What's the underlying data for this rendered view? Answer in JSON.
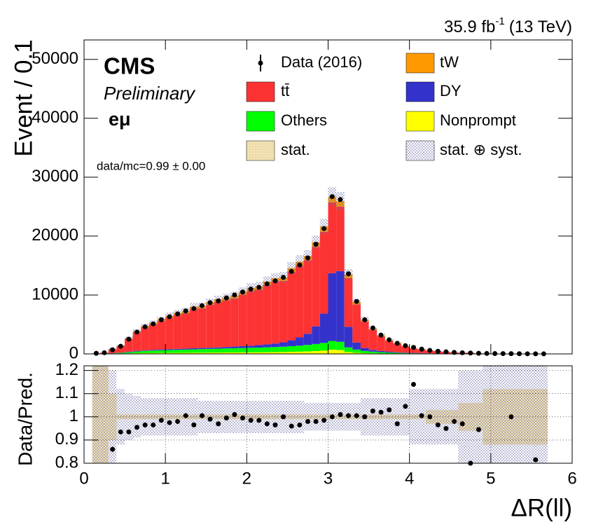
{
  "chart_data": [
    {
      "type": "stacked_histogram",
      "lumi": "35.9 fb",
      "lumi_sup": "-1",
      "lumi_energy": "(13 TeV)",
      "experiment": "CMS",
      "status": "Preliminary",
      "channel": "eμ",
      "note": "data/mc=0.99 ± 0.00",
      "ylabel": "Event / 0.1",
      "bins": [
        0.1,
        0.2,
        0.3,
        0.4,
        0.5,
        0.6,
        0.7,
        0.8,
        0.9,
        1.0,
        1.1,
        1.2,
        1.3,
        1.4,
        1.5,
        1.6,
        1.7,
        1.8,
        1.9,
        2.0,
        2.1,
        2.2,
        2.3,
        2.4,
        2.5,
        2.6,
        2.7,
        2.8,
        2.9,
        3.0,
        3.1,
        3.2,
        3.3,
        3.4,
        3.5,
        3.6,
        3.7,
        3.8,
        3.9,
        4.0,
        4.1,
        4.2,
        4.3,
        4.4,
        4.5,
        4.6,
        4.7,
        4.8,
        4.9,
        5.0,
        5.1,
        5.2,
        5.3,
        5.4,
        5.5,
        5.6,
        5.7
      ],
      "xlim": [
        0,
        6
      ],
      "xticks": [
        0,
        1,
        2,
        3,
        4,
        5,
        6
      ],
      "ylim": [
        0,
        53300
      ],
      "yticks": [
        0,
        10000,
        20000,
        30000,
        40000,
        50000
      ],
      "data": {
        "name": "Data (2016)",
        "color": "#000000",
        "values": [
          100,
          200,
          700,
          1300,
          2500,
          3700,
          4600,
          5100,
          5800,
          6300,
          6800,
          7300,
          7700,
          8200,
          8700,
          9000,
          9500,
          10000,
          10500,
          11000,
          11300,
          11900,
          12400,
          13000,
          14000,
          15100,
          16300,
          18600,
          21300,
          26700,
          26200,
          13600,
          8900,
          5800,
          4400,
          3200,
          2400,
          1800,
          1400,
          1100,
          800,
          600,
          450,
          350,
          250,
          200,
          150,
          100,
          80,
          60,
          50,
          40,
          30,
          20,
          15,
          10
        ]
      },
      "series": [
        {
          "name": "Nonprompt",
          "color": "#ffff00",
          "values": [
            5,
            10,
            30,
            50,
            80,
            110,
            130,
            140,
            150,
            160,
            170,
            180,
            190,
            200,
            210,
            220,
            230,
            240,
            250,
            260,
            270,
            290,
            300,
            320,
            350,
            380,
            420,
            480,
            560,
            700,
            650,
            300,
            180,
            120,
            90,
            70,
            50,
            40,
            30,
            25,
            20,
            15,
            12,
            10,
            8,
            6,
            5,
            4,
            3,
            2,
            2,
            1,
            1,
            1,
            1,
            0
          ]
        },
        {
          "name": "Others",
          "color": "#00ff00",
          "values": [
            10,
            20,
            60,
            110,
            200,
            300,
            380,
            420,
            460,
            490,
            520,
            550,
            580,
            610,
            640,
            660,
            690,
            720,
            750,
            780,
            800,
            830,
            860,
            900,
            960,
            1020,
            1100,
            1200,
            1300,
            1500,
            1400,
            800,
            550,
            380,
            290,
            220,
            170,
            130,
            100,
            80,
            60,
            45,
            35,
            28,
            20,
            16,
            12,
            8,
            6,
            5,
            4,
            3,
            2,
            2,
            1,
            1
          ]
        },
        {
          "name": "DY",
          "color": "#3333cc",
          "values": [
            10,
            20,
            40,
            60,
            90,
            110,
            120,
            130,
            140,
            150,
            160,
            170,
            180,
            190,
            200,
            220,
            250,
            280,
            320,
            360,
            420,
            500,
            600,
            750,
            1000,
            1400,
            1900,
            3000,
            5000,
            11500,
            12000,
            3500,
            1200,
            500,
            300,
            200,
            140,
            100,
            80,
            60,
            45,
            35,
            25,
            20,
            15,
            12,
            10,
            8,
            6,
            5,
            4,
            3,
            2,
            2,
            1,
            1
          ]
        },
        {
          "name": "tt̄",
          "color": "#fd3333",
          "values": [
            70,
            150,
            640,
            1100,
            2170,
            3160,
            3900,
            4330,
            4850,
            5340,
            5750,
            6000,
            6650,
            6760,
            7320,
            7740,
            7920,
            8180,
            8730,
            9250,
            9440,
            10090,
            10510,
            10430,
            11630,
            12170,
            12480,
            13500,
            13860,
            12000,
            10940,
            8280,
            6480,
            4500,
            3380,
            2480,
            1840,
            1490,
            1050,
            740,
            630,
            470,
            370,
            290,
            200,
            160,
            150,
            80,
            60,
            45,
            37,
            30,
            23,
            14,
            14,
            7
          ]
        },
        {
          "name": "tW",
          "color": "#ff9900",
          "values": [
            10,
            15,
            40,
            70,
            130,
            190,
            240,
            260,
            290,
            320,
            340,
            360,
            380,
            400,
            420,
            440,
            460,
            480,
            500,
            520,
            540,
            560,
            580,
            600,
            640,
            680,
            730,
            800,
            900,
            1000,
            950,
            650,
            450,
            300,
            230,
            170,
            130,
            100,
            80,
            60,
            45,
            35,
            28,
            22,
            16,
            13,
            10,
            7,
            5,
            4,
            3,
            3,
            2,
            1,
            1,
            1
          ]
        }
      ],
      "band_labels": [
        "stat.",
        "stat. ⊕ syst."
      ]
    },
    {
      "type": "ratio",
      "ylabel": "Data/Pred.",
      "xlabel": "ΔR(ll)",
      "xlim": [
        0,
        6
      ],
      "xticks": [
        0,
        1,
        2,
        3,
        4,
        5,
        6
      ],
      "ylim": [
        0.8,
        1.22
      ],
      "yticks": [
        0.8,
        0.9,
        1,
        1.1,
        1.2
      ],
      "values": [
        null,
        null,
        0.86,
        0.935,
        0.935,
        0.955,
        0.965,
        0.965,
        0.985,
        0.975,
        0.98,
        1.005,
        0.965,
        1.005,
        0.99,
        0.97,
        0.995,
        1.01,
        0.995,
        0.985,
        0.985,
        0.97,
        0.965,
        1.0,
        0.96,
        0.965,
        0.98,
        0.98,
        0.985,
        1.0,
        1.01,
        1.005,
        1.005,
        1.0,
        1.025,
        1.02,
        1.03,
        0.97,
        1.045,
        1.14,
        1.005,
        1.0,
        0.965,
        0.95,
        0.98,
        0.97,
        0.8,
        0.945,
        null,
        null,
        null,
        1.0,
        null,
        null,
        0.815,
        null
      ],
      "stat_band": [
        0.25,
        0.25,
        0.1,
        0.01,
        0.01,
        0.01,
        0.01,
        0.01,
        0.01,
        0.01,
        0.01,
        0.01,
        0.01,
        0.01,
        0.01,
        0.01,
        0.01,
        0.01,
        0.01,
        0.01,
        0.01,
        0.01,
        0.01,
        0.01,
        0.01,
        0.01,
        0.01,
        0.01,
        0.01,
        0.01,
        0.01,
        0.01,
        0.01,
        0.01,
        0.01,
        0.01,
        0.01,
        0.01,
        0.01,
        0.01,
        0.01,
        0.03,
        0.03,
        0.03,
        0.03,
        0.06,
        0.06,
        0.06,
        0.12,
        0.12,
        0.12,
        0.12,
        0.12,
        0.12,
        0.12,
        0.12
      ],
      "syst_band": [
        0.25,
        0.25,
        0.2,
        0.12,
        0.1,
        0.09,
        0.08,
        0.08,
        0.08,
        0.08,
        0.08,
        0.08,
        0.08,
        0.07,
        0.07,
        0.07,
        0.07,
        0.07,
        0.07,
        0.07,
        0.07,
        0.07,
        0.07,
        0.07,
        0.07,
        0.07,
        0.06,
        0.06,
        0.06,
        0.06,
        0.06,
        0.06,
        0.06,
        0.08,
        0.08,
        0.08,
        0.08,
        0.08,
        0.08,
        0.12,
        0.12,
        0.12,
        0.12,
        0.12,
        0.12,
        0.2,
        0.2,
        0.2,
        0.3,
        0.3,
        0.3,
        0.3,
        0.3,
        0.3,
        0.3,
        0.3
      ]
    }
  ]
}
